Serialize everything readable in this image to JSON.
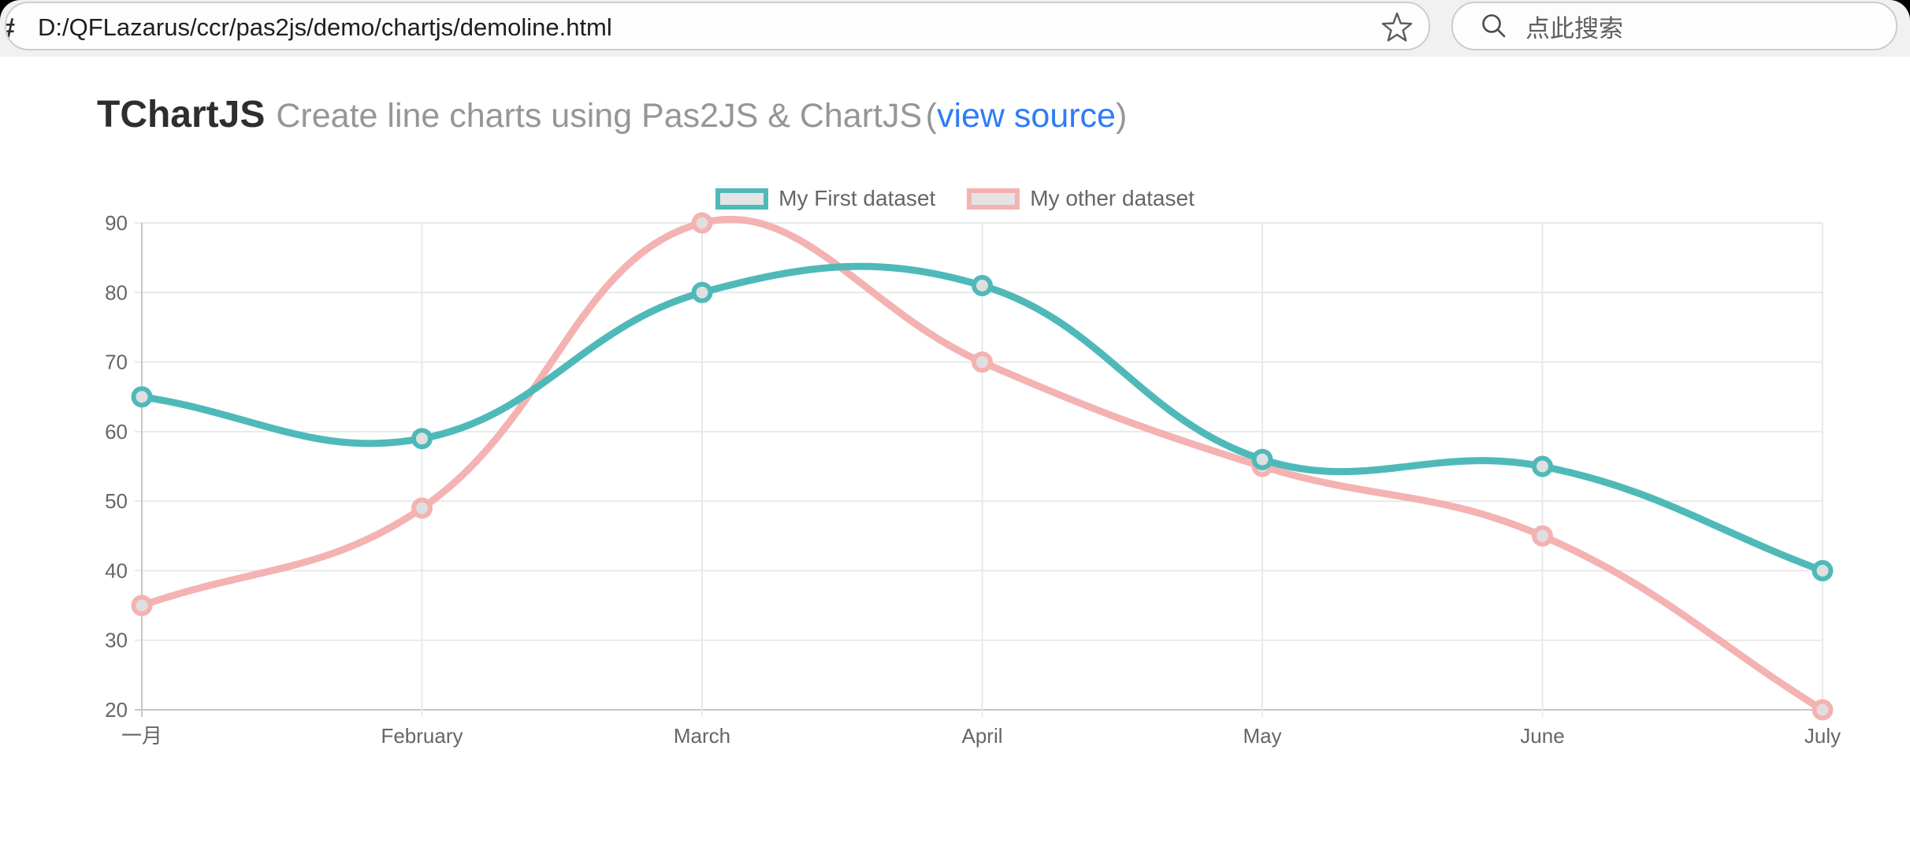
{
  "browser": {
    "tab_corner_color": "#000000",
    "url": "D:/QFLazarus/ccr/pas2js/demo/chartjs/demoline.html",
    "url_left_glyph": "#",
    "star_icon": "bookmark-star-outline",
    "search_icon": "magnifier",
    "search_placeholder": "点此搜索"
  },
  "header": {
    "title": "TChartJS",
    "subtitle": "Create line charts using Pas2JS & ChartJS",
    "link_prefix": "(",
    "link_text": "view source",
    "link_suffix": ")"
  },
  "chart_data": {
    "type": "line",
    "title": "",
    "categories": [
      "一月",
      "February",
      "March",
      "April",
      "May",
      "June",
      "July"
    ],
    "series": [
      {
        "name": "My First dataset",
        "color": "#4fb9b9",
        "values": [
          65,
          59,
          80,
          81,
          56,
          55,
          40
        ]
      },
      {
        "name": "My other dataset",
        "color": "#f4b2b2",
        "values": [
          35,
          49,
          90,
          70,
          55,
          45,
          20
        ]
      }
    ],
    "ylim": [
      20,
      90
    ],
    "yticks": [
      20,
      30,
      40,
      50,
      60,
      70,
      80,
      90
    ],
    "xlabel": "",
    "ylabel": "",
    "grid": true,
    "legend_position": "top",
    "line_tension": 0.4,
    "colors": {
      "grid": "#e9e9e9",
      "axis": "#c6c6c6",
      "tick_label": "#666666",
      "point_fill": "#dfdfdf",
      "legend_box_fill": "#e4e4e4"
    }
  }
}
